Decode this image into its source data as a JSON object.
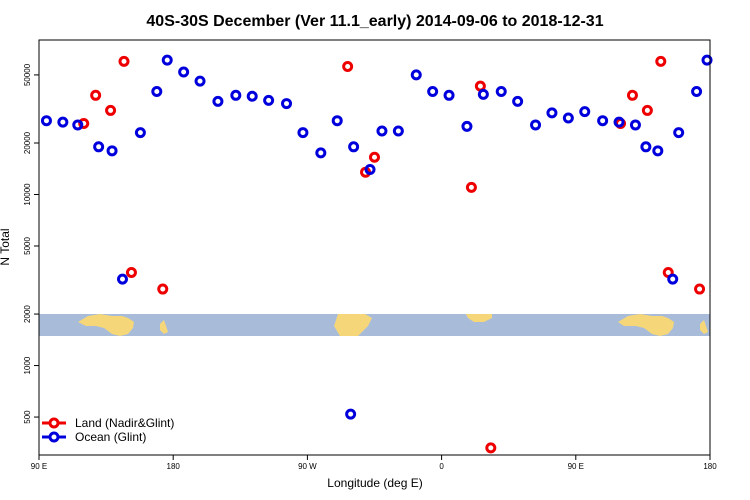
{
  "chart_data": {
    "type": "scatter",
    "title": "40S-30S December (Ver 11.1_early)   2014-09-06 to 2018-12-31",
    "xlabel": "Longitude (deg E)",
    "ylabel": "N Total",
    "y_scale": "log",
    "ylim": [
      300,
      80000
    ],
    "x_ticks": [
      "90 E",
      "180",
      "90 W",
      "0",
      "90 E",
      "180"
    ],
    "y_ticks": [
      {
        "value": 500,
        "label": "500"
      },
      {
        "value": 1000,
        "label": "1000"
      },
      {
        "value": 2000,
        "label": "2000"
      },
      {
        "value": 5000,
        "label": "5000"
      },
      {
        "value": 10000,
        "label": "10000"
      },
      {
        "value": 20000,
        "label": "20000"
      },
      {
        "value": 50000,
        "label": "50000"
      }
    ],
    "legend_position": "bottom-left",
    "map_strip": true,
    "colors": {
      "land": "#ee0000",
      "ocean": "#0000dd",
      "sea": "#a8bcd9",
      "continent": "#f5d77a"
    },
    "series": [
      {
        "name": "Land (Nadir&Glint)",
        "key": "land",
        "points": [
          [
            120,
            26000
          ],
          [
            128,
            38000
          ],
          [
            138,
            31000
          ],
          [
            147,
            60000
          ],
          [
            152,
            3500
          ],
          [
            173,
            2800
          ],
          [
            297,
            56000
          ],
          [
            309,
            13500
          ],
          [
            315,
            16500
          ],
          [
            380,
            11000
          ],
          [
            386,
            43000
          ],
          [
            393,
            330
          ],
          [
            480,
            26000
          ],
          [
            488,
            38000
          ],
          [
            498,
            31000
          ],
          [
            507,
            60000
          ],
          [
            512,
            3500
          ],
          [
            533,
            2800
          ]
        ]
      },
      {
        "name": "Ocean (Glint)",
        "key": "ocean",
        "points": [
          [
            95,
            27000
          ],
          [
            106,
            26500
          ],
          [
            116,
            25500
          ],
          [
            130,
            19000
          ],
          [
            139,
            18000
          ],
          [
            146,
            3200
          ],
          [
            158,
            23000
          ],
          [
            169,
            40000
          ],
          [
            176,
            61000
          ],
          [
            187,
            52000
          ],
          [
            198,
            46000
          ],
          [
            210,
            35000
          ],
          [
            222,
            38000
          ],
          [
            233,
            37500
          ],
          [
            244,
            35500
          ],
          [
            256,
            34000
          ],
          [
            267,
            23000
          ],
          [
            279,
            17500
          ],
          [
            290,
            27000
          ],
          [
            301,
            19000
          ],
          [
            299,
            520
          ],
          [
            312,
            14000
          ],
          [
            320,
            23500
          ],
          [
            331,
            23500
          ],
          [
            343,
            50000
          ],
          [
            354,
            40000
          ],
          [
            365,
            38000
          ],
          [
            377,
            25000
          ],
          [
            388,
            38500
          ],
          [
            400,
            40000
          ],
          [
            411,
            35000
          ],
          [
            423,
            25500
          ],
          [
            434,
            30000
          ],
          [
            445,
            28000
          ],
          [
            456,
            30500
          ],
          [
            468,
            27000
          ],
          [
            479,
            26500
          ],
          [
            490,
            25500
          ],
          [
            497,
            19000
          ],
          [
            505,
            18000
          ],
          [
            515,
            3200
          ],
          [
            519,
            23000
          ],
          [
            531,
            40000
          ],
          [
            538,
            61000
          ]
        ]
      }
    ]
  }
}
